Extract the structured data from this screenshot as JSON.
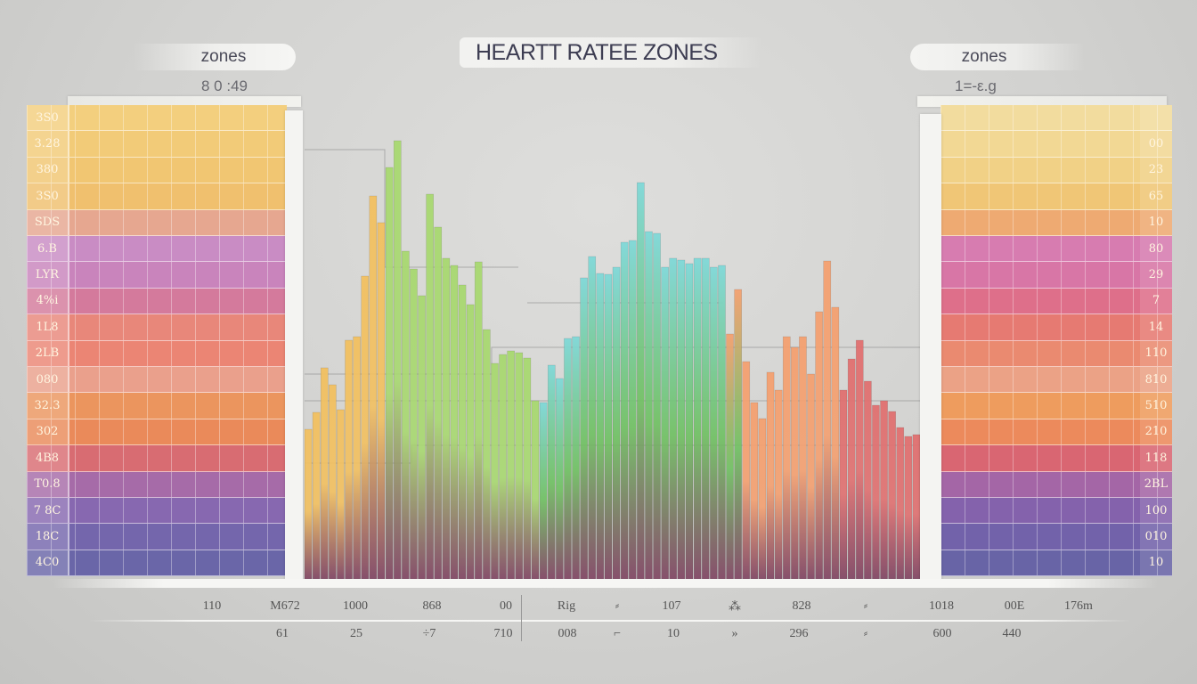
{
  "header": {
    "title": "HEARTT RATEE ZONES",
    "left_pill": "zones",
    "left_sub": "8 0 :49",
    "right_pill": "zones",
    "right_sub": "1=-ε.g"
  },
  "left_panel": {
    "labels": [
      "3S0",
      "3.28",
      "380",
      "3S0",
      "SDS",
      "6.B",
      "LYR",
      "4%i",
      "1L8",
      "2LB",
      "080",
      "32.3",
      "302",
      "4B8",
      "T0.8",
      "7 8C",
      "18C",
      "4C0"
    ],
    "row_colors": [
      "#f3cf7e",
      "#f2cb78",
      "#f1c672",
      "#f0c06e",
      "#e6a790",
      "#c98cc4",
      "#c984bc",
      "#d47a9c",
      "#e8877a",
      "#eb8574",
      "#eaa08c",
      "#eb955e",
      "#ea8a5a",
      "#d86c72",
      "#a66ba8",
      "#8768b0",
      "#7466ac",
      "#6a66a8"
    ]
  },
  "right_panel": {
    "labels": [
      "",
      "00",
      "23",
      "65",
      "10",
      "80",
      "29",
      "7",
      "14",
      "110",
      "810",
      "510",
      "210",
      "118",
      "2BL",
      "100",
      "010",
      "10"
    ],
    "row_colors": [
      "#f2dc9e",
      "#f2d894",
      "#f1d186",
      "#f0c676",
      "#eeaa72",
      "#d77cb0",
      "#d876a6",
      "#de6f8a",
      "#e67a72",
      "#ea8a70",
      "#eba286",
      "#ee9c5e",
      "#ec8a5c",
      "#d96672",
      "#a466a6",
      "#8462ac",
      "#7262aa",
      "#6864a6"
    ]
  },
  "bottom": {
    "row1": [
      "110",
      "M672",
      "1000",
      "868",
      "00",
      "Rig",
      "⸗",
      "107",
      "⁂",
      "828",
      "⸗",
      "1018",
      "00E",
      "176m"
    ],
    "row2": [
      "61",
      "25",
      "÷7",
      "710",
      "008",
      "⌐",
      "10",
      "»",
      "296",
      "⸗",
      "600",
      "440"
    ]
  },
  "chart_data": {
    "type": "bar",
    "title": "HEARTT RATEE ZONES",
    "xlabel": "",
    "ylabel": "",
    "grid": true,
    "values": [
      168,
      187,
      237,
      218,
      190,
      268,
      272,
      340,
      430,
      400,
      462,
      492,
      368,
      348,
      318,
      432,
      395,
      360,
      352,
      330,
      308,
      356,
      280,
      242,
      252,
      256,
      254,
      248,
      200,
      198,
      240,
      225,
      270,
      272,
      338,
      362,
      343,
      342,
      350,
      378,
      380,
      445,
      390,
      388,
      350,
      360,
      358,
      354,
      360,
      360,
      350,
      352,
      275,
      325,
      244,
      198,
      180,
      232,
      212,
      272,
      260,
      272,
      230,
      300,
      357,
      305,
      212,
      247,
      268,
      222,
      195,
      200,
      188,
      170,
      160,
      162
    ],
    "colors": {
      "warm": "#f2c060",
      "green": "#a8d870",
      "cyan": "#7fd8d8",
      "orange": "#f4a070",
      "red": "#e07070",
      "base_dark": "#7a3a5a"
    }
  }
}
